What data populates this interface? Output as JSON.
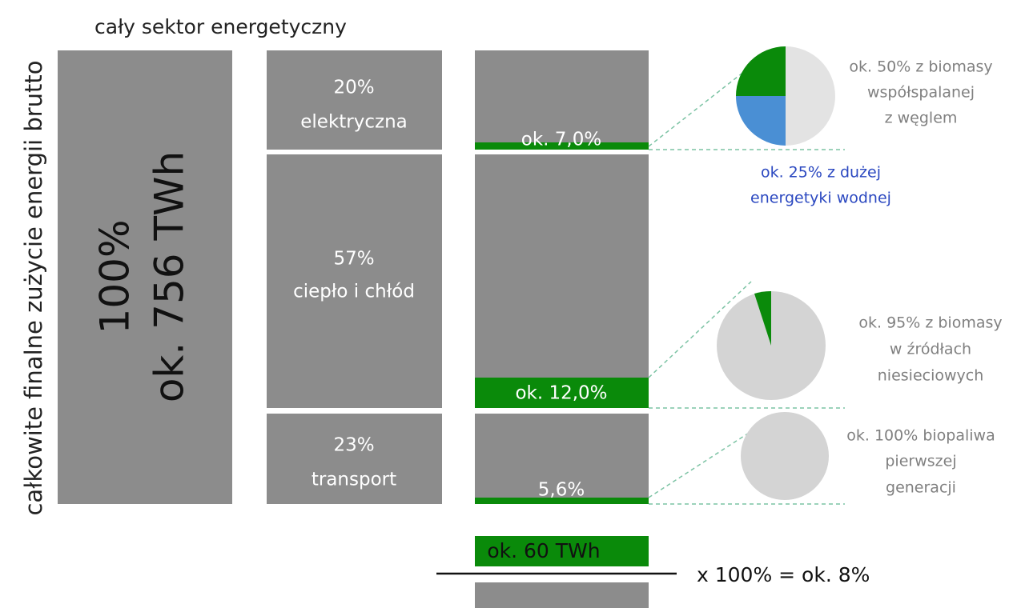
{
  "side_label": "całkowite finalne zużycie energii brutto",
  "title": "cały sektor energetyczny",
  "total": {
    "lines": [
      "100%",
      "ok. 756 TWh"
    ]
  },
  "sectors": [
    {
      "lines": [
        "20%",
        "elektryczna"
      ],
      "renewable": "ok. 7,0%"
    },
    {
      "lines": [
        "57%",
        "ciepło i chłód"
      ],
      "renewable": "ok. 12,0%"
    },
    {
      "lines": [
        "23%",
        "transport"
      ],
      "renewable": "5,6%"
    }
  ],
  "notes": [
    {
      "lines": [
        "ok. 50% z biomasy",
        "współspalanej",
        "z węglem"
      ]
    },
    {
      "lines": [
        "ok. 25% z dużej",
        "energetyki wodnej"
      ]
    },
    {
      "lines": [
        "ok. 95% z biomasy",
        "w źródłach",
        "niesieciowych"
      ]
    },
    {
      "lines": [
        "ok. 100% biopaliwa",
        "pierwszej",
        "generacji"
      ]
    }
  ],
  "fraction": {
    "numerator": "ok. 60 TWh",
    "result": "x 100% = ok. 8%"
  }
}
